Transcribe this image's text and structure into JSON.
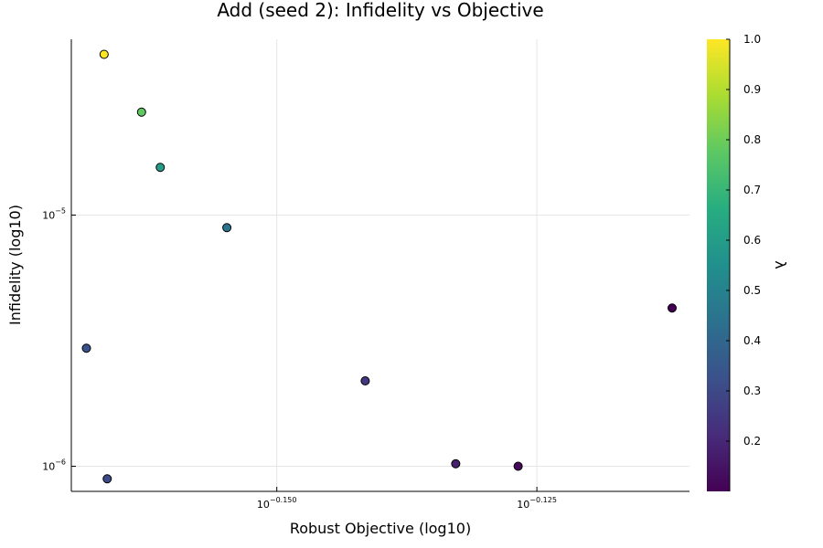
{
  "chart_data": {
    "type": "scatter",
    "title": "Add (seed 2): Infidelity vs Objective",
    "xlabel": "Robust Objective (log10)",
    "ylabel": "Infidelity (log10)",
    "xscale": "log10",
    "yscale": "log10",
    "xlim_log10": [
      -0.16975,
      -0.11033
    ],
    "ylim_log10": [
      -6.1,
      -4.3
    ],
    "x_ticks": [
      {
        "value_log10": -0.15,
        "base": "10",
        "exponent": "−0.150"
      },
      {
        "value_log10": -0.125,
        "base": "10",
        "exponent": "−0.125"
      }
    ],
    "y_ticks": [
      {
        "value_log10": -6,
        "base": "10",
        "exponent": "−6"
      },
      {
        "value_log10": -5,
        "base": "10",
        "exponent": "−5"
      }
    ],
    "grid": true,
    "colorbar": {
      "label": "λ",
      "colormap": "viridis",
      "range": [
        0.1,
        1.0
      ],
      "ticks": [
        "0.2",
        "0.3",
        "0.4",
        "0.5",
        "0.6",
        "0.7",
        "0.8",
        "0.9",
        "1.0"
      ]
    },
    "points": [
      {
        "x_log10": -0.1666,
        "y_log10": -4.36,
        "lambda": 1.0
      },
      {
        "x_log10": -0.163,
        "y_log10": -4.59,
        "lambda": 0.78
      },
      {
        "x_log10": -0.1612,
        "y_log10": -4.81,
        "lambda": 0.6
      },
      {
        "x_log10": -0.1548,
        "y_log10": -5.05,
        "lambda": 0.45
      },
      {
        "x_log10": -0.1683,
        "y_log10": -5.53,
        "lambda": 0.33
      },
      {
        "x_log10": -0.1415,
        "y_log10": -5.66,
        "lambda": 0.25
      },
      {
        "x_log10": -0.1663,
        "y_log10": -6.05,
        "lambda": 0.3
      },
      {
        "x_log10": -0.1328,
        "y_log10": -5.99,
        "lambda": 0.18
      },
      {
        "x_log10": -0.1268,
        "y_log10": -6.0,
        "lambda": 0.12
      },
      {
        "x_log10": -0.112,
        "y_log10": -5.37,
        "lambda": 0.1
      }
    ]
  }
}
